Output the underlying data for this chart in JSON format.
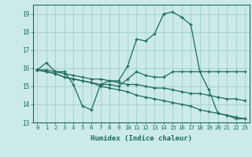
{
  "xlabel": "Humidex (Indice chaleur)",
  "ylabel": "",
  "bg_color": "#cceaea",
  "grid_color": "#aad4d4",
  "line_color": "#1a6b5a",
  "xlim": [
    -0.5,
    23.5
  ],
  "ylim": [
    13,
    19.5
  ],
  "yticks": [
    13,
    14,
    15,
    16,
    17,
    18,
    19
  ],
  "xticks": [
    0,
    1,
    2,
    3,
    4,
    5,
    6,
    7,
    8,
    9,
    10,
    11,
    12,
    13,
    14,
    15,
    16,
    17,
    18,
    19,
    20,
    21,
    22,
    23
  ],
  "series": [
    [
      15.9,
      16.3,
      15.8,
      15.8,
      15.1,
      13.9,
      13.7,
      15.1,
      15.3,
      15.3,
      16.1,
      17.6,
      17.5,
      17.9,
      19.0,
      19.1,
      18.8,
      18.4,
      15.8,
      14.8,
      13.5,
      13.4,
      13.2,
      13.2
    ],
    [
      15.9,
      15.9,
      15.8,
      15.7,
      15.6,
      15.5,
      15.4,
      15.4,
      15.3,
      15.2,
      15.1,
      15.1,
      15.0,
      14.9,
      14.9,
      14.8,
      14.7,
      14.6,
      14.6,
      14.5,
      14.4,
      14.3,
      14.3,
      14.2
    ],
    [
      15.9,
      15.8,
      15.7,
      15.5,
      15.4,
      15.3,
      15.2,
      15.1,
      15.1,
      15.0,
      15.4,
      15.8,
      15.6,
      15.5,
      15.5,
      15.8,
      15.8,
      15.8,
      15.8,
      15.8,
      15.8,
      15.8,
      15.8,
      15.8
    ],
    [
      15.9,
      15.8,
      15.7,
      15.5,
      15.4,
      15.3,
      15.2,
      15.0,
      14.9,
      14.8,
      14.7,
      14.5,
      14.4,
      14.3,
      14.2,
      14.1,
      14.0,
      13.9,
      13.7,
      13.6,
      13.5,
      13.4,
      13.3,
      13.2
    ]
  ]
}
